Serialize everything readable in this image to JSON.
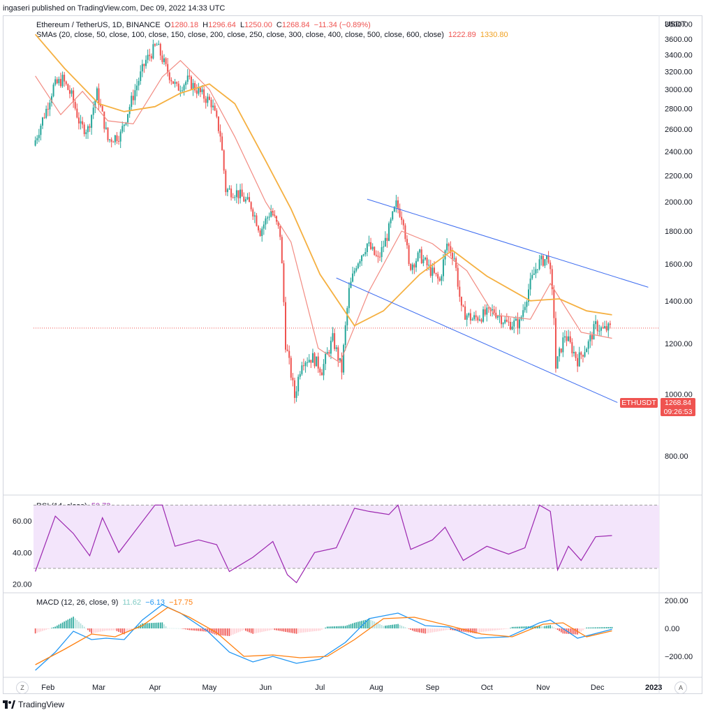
{
  "header": {
    "publish_line": "ingaseri published on TradingView.com, Dec 09, 2022 14:33 UTC"
  },
  "legend": {
    "symbol": "Ethereum / TetherUS, 1D, BINANCE",
    "open_label": "O",
    "open": "1280.18",
    "high_label": "H",
    "high": "1296.64",
    "low_label": "L",
    "low": "1250.00",
    "close_label": "C",
    "close": "1268.84",
    "change": "−11.34 (−0.89%)",
    "sma_label": "SMAs (20, close, 50, close, 100, close, 150, close, 200, close, 250, close, 300, close, 400, close, 500, close, 600, close)",
    "sma_fast_value": "1222.89",
    "sma_slow_value": "1330.80",
    "rsi_label": "RSI (14, close)",
    "rsi_value": "50.73",
    "macd_label": "MACD (12, 26, close, 9)",
    "macd_hist_value": "11.62",
    "macd_value": "−6.13",
    "macd_signal_value": "−17.75"
  },
  "price_tag": {
    "symbol": "ETHUSDT",
    "price": "1268.84",
    "countdown": "09:26:53"
  },
  "footer": {
    "brand": "TradingView",
    "zoom_button": "Z",
    "auto_button": "A"
  },
  "colors": {
    "up": "#26a69a",
    "down": "#ef5350",
    "sma_fast": "#f28b82",
    "sma_slow": "#f5b041",
    "channel": "#3d6cf0",
    "rsi": "#9c27b0",
    "rsi_band": "#f3e5fb",
    "macd": "#2196f3",
    "signal": "#ff7f0e"
  },
  "chart_data": [
    {
      "type": "candlestick",
      "currency": "USDT",
      "ylim": [
        700,
        3900
      ],
      "y_ticks": [
        "3800.00",
        "3600.00",
        "3400.00",
        "3200.00",
        "3000.00",
        "2800.00",
        "2600.00",
        "2400.00",
        "2200.00",
        "2000.00",
        "1800.00",
        "1600.00",
        "1400.00",
        "1200.00",
        "1000.00",
        "800.00"
      ],
      "x_labels": [
        "Feb",
        "Mar",
        "Apr",
        "May",
        "Jun",
        "Jul",
        "Aug",
        "Sep",
        "Oct",
        "Nov",
        "Dec",
        "2023"
      ],
      "approx_closes": [
        {
          "date": "2022-01-25",
          "close": 2450
        },
        {
          "date": "2022-02-01",
          "close": 2790
        },
        {
          "date": "2022-02-05",
          "close": 3030
        },
        {
          "date": "2022-02-10",
          "close": 3110
        },
        {
          "date": "2022-02-15",
          "close": 2930
        },
        {
          "date": "2022-02-20",
          "close": 2620
        },
        {
          "date": "2022-02-24",
          "close": 2600
        },
        {
          "date": "2022-03-01",
          "close": 2960
        },
        {
          "date": "2022-03-07",
          "close": 2500
        },
        {
          "date": "2022-03-14",
          "close": 2550
        },
        {
          "date": "2022-03-20",
          "close": 2880
        },
        {
          "date": "2022-03-28",
          "close": 3330
        },
        {
          "date": "2022-04-03",
          "close": 3520
        },
        {
          "date": "2022-04-08",
          "close": 3240
        },
        {
          "date": "2022-04-14",
          "close": 3010
        },
        {
          "date": "2022-04-20",
          "close": 3100
        },
        {
          "date": "2022-04-28",
          "close": 2940
        },
        {
          "date": "2022-05-03",
          "close": 2860
        },
        {
          "date": "2022-05-08",
          "close": 2550
        },
        {
          "date": "2022-05-11",
          "close": 2090
        },
        {
          "date": "2022-05-17",
          "close": 2070
        },
        {
          "date": "2022-05-25",
          "close": 1970
        },
        {
          "date": "2022-05-30",
          "close": 1800
        },
        {
          "date": "2022-06-05",
          "close": 1940
        },
        {
          "date": "2022-06-10",
          "close": 1780
        },
        {
          "date": "2022-06-13",
          "close": 1200
        },
        {
          "date": "2022-06-18",
          "close": 990
        },
        {
          "date": "2022-06-22",
          "close": 1130
        },
        {
          "date": "2022-06-28",
          "close": 1140
        },
        {
          "date": "2022-07-03",
          "close": 1090
        },
        {
          "date": "2022-07-09",
          "close": 1220
        },
        {
          "date": "2022-07-14",
          "close": 1090
        },
        {
          "date": "2022-07-18",
          "close": 1450
        },
        {
          "date": "2022-07-22",
          "close": 1600
        },
        {
          "date": "2022-07-28",
          "close": 1720
        },
        {
          "date": "2022-08-03",
          "close": 1620
        },
        {
          "date": "2022-08-08",
          "close": 1770
        },
        {
          "date": "2022-08-13",
          "close": 1980
        },
        {
          "date": "2022-08-17",
          "close": 1880
        },
        {
          "date": "2022-08-20",
          "close": 1580
        },
        {
          "date": "2022-08-26",
          "close": 1650
        },
        {
          "date": "2022-09-01",
          "close": 1560
        },
        {
          "date": "2022-09-06",
          "close": 1500
        },
        {
          "date": "2022-09-10",
          "close": 1720
        },
        {
          "date": "2022-09-14",
          "close": 1640
        },
        {
          "date": "2022-09-18",
          "close": 1350
        },
        {
          "date": "2022-09-24",
          "close": 1310
        },
        {
          "date": "2022-09-30",
          "close": 1330
        },
        {
          "date": "2022-10-06",
          "close": 1350
        },
        {
          "date": "2022-10-13",
          "close": 1290
        },
        {
          "date": "2022-10-20",
          "close": 1290
        },
        {
          "date": "2022-10-25",
          "close": 1460
        },
        {
          "date": "2022-10-30",
          "close": 1600
        },
        {
          "date": "2022-11-05",
          "close": 1640
        },
        {
          "date": "2022-11-08",
          "close": 1330
        },
        {
          "date": "2022-11-09",
          "close": 1100
        },
        {
          "date": "2022-11-14",
          "close": 1240
        },
        {
          "date": "2022-11-21",
          "close": 1130
        },
        {
          "date": "2022-11-27",
          "close": 1200
        },
        {
          "date": "2022-12-01",
          "close": 1280
        },
        {
          "date": "2022-12-05",
          "close": 1260
        },
        {
          "date": "2022-12-09",
          "close": 1268.84
        }
      ],
      "sma_fast_approx": [
        {
          "date": "2022-01-25",
          "value": 3150
        },
        {
          "date": "2022-02-08",
          "value": 2740
        },
        {
          "date": "2022-02-20",
          "value": 2980
        },
        {
          "date": "2022-03-06",
          "value": 2680
        },
        {
          "date": "2022-03-20",
          "value": 2650
        },
        {
          "date": "2022-04-05",
          "value": 3140
        },
        {
          "date": "2022-04-15",
          "value": 3330
        },
        {
          "date": "2022-05-01",
          "value": 3000
        },
        {
          "date": "2022-05-15",
          "value": 2530
        },
        {
          "date": "2022-06-01",
          "value": 2000
        },
        {
          "date": "2022-06-15",
          "value": 1730
        },
        {
          "date": "2022-06-30",
          "value": 1180
        },
        {
          "date": "2022-07-12",
          "value": 1120
        },
        {
          "date": "2022-07-28",
          "value": 1450
        },
        {
          "date": "2022-08-15",
          "value": 1800
        },
        {
          "date": "2022-09-01",
          "value": 1720
        },
        {
          "date": "2022-09-20",
          "value": 1560
        },
        {
          "date": "2022-10-05",
          "value": 1330
        },
        {
          "date": "2022-10-25",
          "value": 1310
        },
        {
          "date": "2022-11-05",
          "value": 1490
        },
        {
          "date": "2022-11-22",
          "value": 1250
        },
        {
          "date": "2022-12-09",
          "value": 1222.89
        }
      ],
      "sma_slow_approx": [
        {
          "date": "2022-01-25",
          "value": 3660
        },
        {
          "date": "2022-02-10",
          "value": 3240
        },
        {
          "date": "2022-03-01",
          "value": 2850
        },
        {
          "date": "2022-03-15",
          "value": 2770
        },
        {
          "date": "2022-04-01",
          "value": 2820
        },
        {
          "date": "2022-04-15",
          "value": 2960
        },
        {
          "date": "2022-05-01",
          "value": 3060
        },
        {
          "date": "2022-05-15",
          "value": 2850
        },
        {
          "date": "2022-06-01",
          "value": 2320
        },
        {
          "date": "2022-06-15",
          "value": 1950
        },
        {
          "date": "2022-07-01",
          "value": 1540
        },
        {
          "date": "2022-07-20",
          "value": 1280
        },
        {
          "date": "2022-08-05",
          "value": 1350
        },
        {
          "date": "2022-08-25",
          "value": 1540
        },
        {
          "date": "2022-09-12",
          "value": 1680
        },
        {
          "date": "2022-10-01",
          "value": 1530
        },
        {
          "date": "2022-10-25",
          "value": 1400
        },
        {
          "date": "2022-11-10",
          "value": 1410
        },
        {
          "date": "2022-11-25",
          "value": 1350
        },
        {
          "date": "2022-12-09",
          "value": 1330.8
        }
      ],
      "trendlines": [
        {
          "name": "upper",
          "from": {
            "date": "2022-07-27",
            "value": 2020
          },
          "to": {
            "date": "2022-12-29",
            "value": 1470
          }
        },
        {
          "name": "lower",
          "from": {
            "date": "2022-07-10",
            "value": 1520
          },
          "to": {
            "date": "2022-12-12",
            "value": 970
          }
        }
      ],
      "last_price_line": 1268.84
    },
    {
      "type": "line",
      "name": "RSI",
      "ylim": [
        15,
        75
      ],
      "y_ticks": [
        "60.00",
        "40.00",
        "20.00"
      ],
      "band": [
        30,
        70
      ],
      "values": [
        {
          "date": "2022-01-25",
          "value": 28
        },
        {
          "date": "2022-02-05",
          "value": 63
        },
        {
          "date": "2022-02-15",
          "value": 52
        },
        {
          "date": "2022-02-24",
          "value": 38
        },
        {
          "date": "2022-03-03",
          "value": 62
        },
        {
          "date": "2022-03-12",
          "value": 40
        },
        {
          "date": "2022-03-20",
          "value": 52
        },
        {
          "date": "2022-04-01",
          "value": 70
        },
        {
          "date": "2022-04-05",
          "value": 70
        },
        {
          "date": "2022-04-12",
          "value": 44
        },
        {
          "date": "2022-04-25",
          "value": 48
        },
        {
          "date": "2022-05-05",
          "value": 45
        },
        {
          "date": "2022-05-12",
          "value": 28
        },
        {
          "date": "2022-05-25",
          "value": 37
        },
        {
          "date": "2022-06-05",
          "value": 47
        },
        {
          "date": "2022-06-13",
          "value": 26
        },
        {
          "date": "2022-06-18",
          "value": 21
        },
        {
          "date": "2022-06-28",
          "value": 40
        },
        {
          "date": "2022-07-10",
          "value": 43
        },
        {
          "date": "2022-07-20",
          "value": 68
        },
        {
          "date": "2022-07-28",
          "value": 66
        },
        {
          "date": "2022-08-08",
          "value": 64
        },
        {
          "date": "2022-08-13",
          "value": 70
        },
        {
          "date": "2022-08-20",
          "value": 42
        },
        {
          "date": "2022-09-01",
          "value": 48
        },
        {
          "date": "2022-09-08",
          "value": 56
        },
        {
          "date": "2022-09-18",
          "value": 35
        },
        {
          "date": "2022-10-01",
          "value": 44
        },
        {
          "date": "2022-10-13",
          "value": 39
        },
        {
          "date": "2022-10-22",
          "value": 43
        },
        {
          "date": "2022-10-30",
          "value": 70
        },
        {
          "date": "2022-11-05",
          "value": 66
        },
        {
          "date": "2022-11-09",
          "value": 29
        },
        {
          "date": "2022-11-15",
          "value": 44
        },
        {
          "date": "2022-11-22",
          "value": 35
        },
        {
          "date": "2022-11-30",
          "value": 50
        },
        {
          "date": "2022-12-09",
          "value": 50.73
        }
      ]
    },
    {
      "type": "line",
      "name": "MACD",
      "ylim": [
        -340,
        250
      ],
      "y_ticks": [
        "200.00",
        "0.00",
        "−200.00"
      ],
      "series": [
        {
          "name": "MACD",
          "values": [
            {
              "date": "2022-01-25",
              "value": -300
            },
            {
              "date": "2022-02-05",
              "value": -170
            },
            {
              "date": "2022-02-15",
              "value": -20
            },
            {
              "date": "2022-02-25",
              "value": -80
            },
            {
              "date": "2022-03-05",
              "value": -70
            },
            {
              "date": "2022-03-15",
              "value": -80
            },
            {
              "date": "2022-03-25",
              "value": 60
            },
            {
              "date": "2022-04-05",
              "value": 170
            },
            {
              "date": "2022-04-15",
              "value": 110
            },
            {
              "date": "2022-04-30",
              "value": -20
            },
            {
              "date": "2022-05-12",
              "value": -170
            },
            {
              "date": "2022-05-25",
              "value": -240
            },
            {
              "date": "2022-06-05",
              "value": -200
            },
            {
              "date": "2022-06-18",
              "value": -250
            },
            {
              "date": "2022-07-01",
              "value": -220
            },
            {
              "date": "2022-07-15",
              "value": -100
            },
            {
              "date": "2022-07-28",
              "value": 70
            },
            {
              "date": "2022-08-13",
              "value": 110
            },
            {
              "date": "2022-08-28",
              "value": 20
            },
            {
              "date": "2022-09-10",
              "value": 10
            },
            {
              "date": "2022-09-25",
              "value": -70
            },
            {
              "date": "2022-10-13",
              "value": -60
            },
            {
              "date": "2022-10-30",
              "value": 40
            },
            {
              "date": "2022-11-05",
              "value": 60
            },
            {
              "date": "2022-11-20",
              "value": -70
            },
            {
              "date": "2022-12-09",
              "value": -6.13
            }
          ]
        },
        {
          "name": "Signal",
          "values": [
            {
              "date": "2022-01-25",
              "value": -260
            },
            {
              "date": "2022-02-10",
              "value": -150
            },
            {
              "date": "2022-02-25",
              "value": -40
            },
            {
              "date": "2022-03-10",
              "value": -60
            },
            {
              "date": "2022-03-25",
              "value": 20
            },
            {
              "date": "2022-04-08",
              "value": 150
            },
            {
              "date": "2022-04-20",
              "value": 80
            },
            {
              "date": "2022-05-05",
              "value": -30
            },
            {
              "date": "2022-05-20",
              "value": -200
            },
            {
              "date": "2022-06-05",
              "value": -190
            },
            {
              "date": "2022-06-20",
              "value": -210
            },
            {
              "date": "2022-07-05",
              "value": -200
            },
            {
              "date": "2022-07-20",
              "value": -80
            },
            {
              "date": "2022-08-05",
              "value": 70
            },
            {
              "date": "2022-08-22",
              "value": 80
            },
            {
              "date": "2022-09-10",
              "value": 20
            },
            {
              "date": "2022-09-28",
              "value": -40
            },
            {
              "date": "2022-10-15",
              "value": -60
            },
            {
              "date": "2022-11-01",
              "value": 30
            },
            {
              "date": "2022-11-12",
              "value": 40
            },
            {
              "date": "2022-11-25",
              "value": -60
            },
            {
              "date": "2022-12-09",
              "value": -17.75
            }
          ]
        }
      ],
      "histogram_last": 11.62
    }
  ]
}
